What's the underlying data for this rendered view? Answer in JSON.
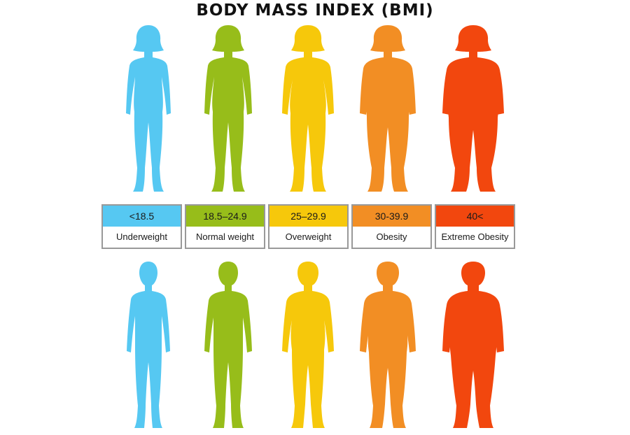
{
  "title": "BODY MASS INDEX (BMI)",
  "categories": [
    {
      "range": "<18.5",
      "label": "Underweight",
      "color": "#56c8f2"
    },
    {
      "range": "18.5–24.9",
      "label": "Normal weight",
      "color": "#97bd1a"
    },
    {
      "range": "25–29.9",
      "label": "Overweight",
      "color": "#f6c80b"
    },
    {
      "range": "30-39.9",
      "label": "Obesity",
      "color": "#f28e24"
    },
    {
      "range": "40<",
      "label": "Extreme Obesity",
      "color": "#f2470e"
    }
  ]
}
